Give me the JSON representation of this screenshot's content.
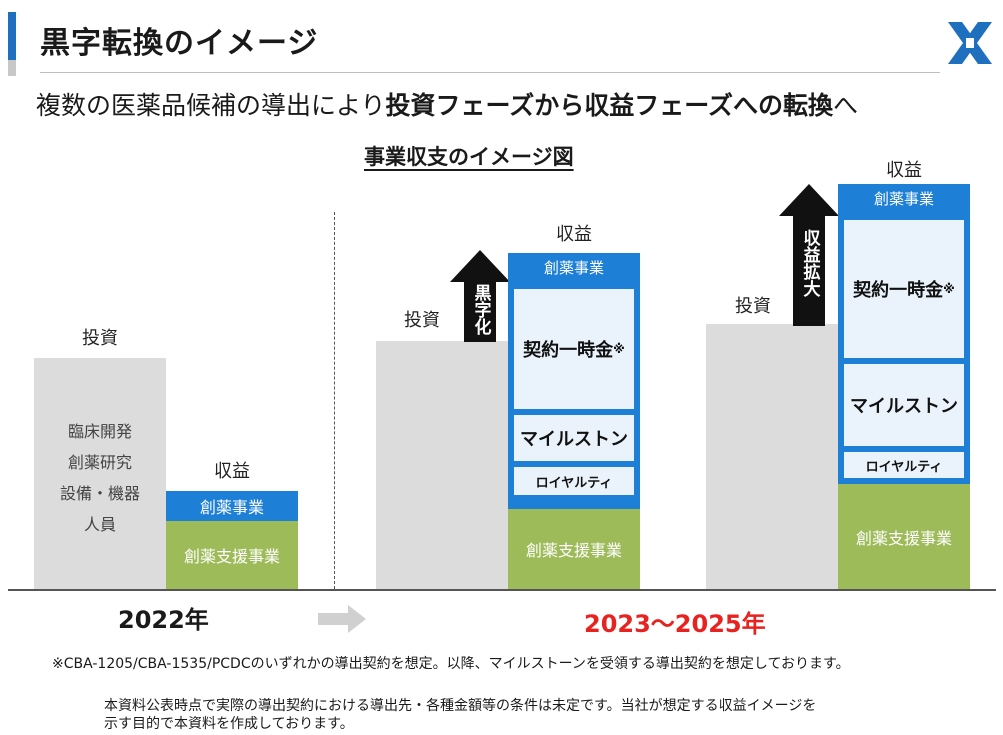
{
  "header": {
    "title": "黒字転換のイメージ",
    "lead_normal_1": "複数の医薬品候補の導出により",
    "lead_bold": "投資フェーズから収益フェーズへの転換",
    "lead_normal_2": "へ",
    "chart_title": "事業収支のイメージ図"
  },
  "colors": {
    "accent": "#1f6fbf",
    "blue_segment": "#1e7fd6",
    "green_segment": "#9dbb59",
    "gray_investment": "#dcdcdc",
    "light_box": "#eaf3fc",
    "year_highlight": "#e8231f"
  },
  "chart_data": {
    "type": "bar",
    "stacked": true,
    "groups": [
      {
        "period": "2022年",
        "investment": {
          "label": "投資",
          "items": [
            "臨床開発",
            "創薬研究",
            "設備・機器",
            "人員"
          ]
        },
        "revenue": {
          "label": "収益",
          "segments": [
            "創薬事業",
            "創薬支援事業"
          ]
        }
      },
      {
        "period": "2023〜2025年",
        "arrow": "黒字化",
        "investment": {
          "label": "投資"
        },
        "revenue": {
          "label": "収益",
          "segments": [
            "創薬事業",
            "契約一時金",
            "マイルストン",
            "ロイヤルティ",
            "創薬支援事業"
          ]
        }
      },
      {
        "period": "2023〜2025年",
        "arrow": "収益拡大",
        "investment": {
          "label": "投資"
        },
        "revenue": {
          "label": "収益",
          "segments": [
            "創薬事業",
            "契約一時金",
            "マイルストン",
            "ロイヤルティ",
            "創薬支援事業"
          ]
        }
      }
    ],
    "x_labels": [
      "2022年",
      "2023〜2025年"
    ],
    "note_mark": "※"
  },
  "labels": {
    "investment": "投資",
    "revenue": "収益",
    "drug_discovery": "創薬事業",
    "drug_support": "創薬支援事業",
    "upfront": "契約一時金",
    "milestone": "マイルストン",
    "royalty": "ロイヤルティ",
    "note_mark": "※",
    "arrow_profit": "黒字化",
    "arrow_expand": "収益拡大",
    "inv_items": [
      "臨床開発",
      "創薬研究",
      "設備・機器",
      "人員"
    ],
    "year_2022": "2022年",
    "year_range": "2023〜2025年"
  },
  "footnote": "※CBA-1205/CBA-1535/PCDCのいずれかの導出契約を想定。以降、マイルストーンを受領する導出契約を想定しております。",
  "disclaimer": {
    "line1": "本資料公表時点で実際の導出契約における導出先・各種金額等の条件は未定です。当社が想定する収益イメージを",
    "line2": "示す目的で本資料を作成しております。"
  }
}
